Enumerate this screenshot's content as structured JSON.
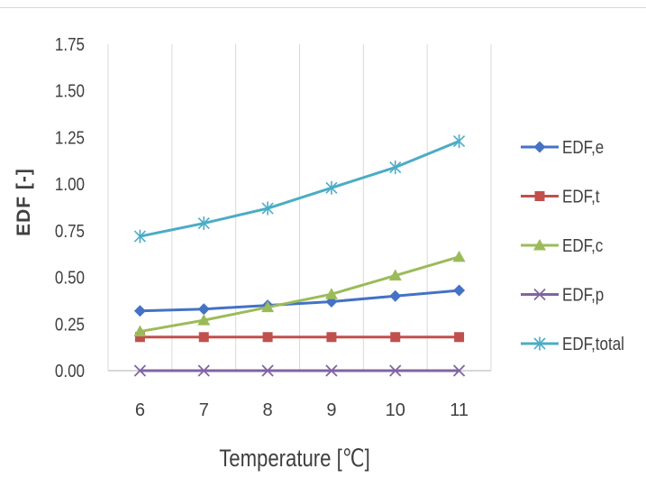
{
  "chart_data": {
    "type": "line",
    "xlabel": "Temperature [℃]",
    "ylabel": "EDF [-]",
    "x": [
      6,
      7,
      8,
      9,
      10,
      11
    ],
    "ylim": [
      0,
      1.75
    ],
    "yticks": [
      "0.00",
      "0.25",
      "0.50",
      "0.75",
      "1.00",
      "1.25",
      "1.50",
      "1.75"
    ],
    "grid": "vertical",
    "legend": "right",
    "series": [
      {
        "name": "EDF,e",
        "marker": "diamond",
        "color": "#4472c4",
        "values": [
          0.32,
          0.33,
          0.35,
          0.37,
          0.4,
          0.43
        ]
      },
      {
        "name": "EDF,t",
        "marker": "square",
        "color": "#c0504d",
        "values": [
          0.18,
          0.18,
          0.18,
          0.18,
          0.18,
          0.18
        ]
      },
      {
        "name": "EDF,c",
        "marker": "triangle",
        "color": "#9bbb59",
        "values": [
          0.21,
          0.27,
          0.34,
          0.41,
          0.51,
          0.61
        ]
      },
      {
        "name": "EDF,p",
        "marker": "x",
        "color": "#8064a2",
        "values": [
          0.0,
          0.0,
          0.0,
          0.0,
          0.0,
          0.0
        ]
      },
      {
        "name": "EDF,total",
        "marker": "star",
        "color": "#4bacc6",
        "values": [
          0.72,
          0.79,
          0.87,
          0.98,
          1.09,
          1.23
        ]
      }
    ]
  }
}
